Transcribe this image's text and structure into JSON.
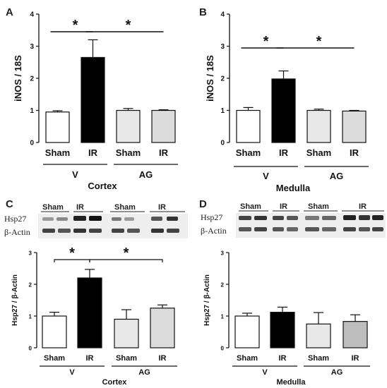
{
  "colors": {
    "sham_v": "#ffffff",
    "ir_v": "#000000",
    "sham_ag": "#e8e8e8",
    "ir_ag_light": "#dcdcdc",
    "ir_ag_dark": "#bdbdbd"
  },
  "blots": [
    {
      "panel": "C",
      "target_label": "Hsp27",
      "loading_label": "β-Actin",
      "lanes": [
        "Sham",
        "IR",
        "Sham",
        "IR"
      ]
    },
    {
      "panel": "D",
      "target_label": "Hsp27",
      "loading_label": "β-Actin",
      "lanes": [
        "Sham",
        "IR",
        "Sham",
        "IR"
      ]
    }
  ],
  "chart_data": [
    {
      "panel": "A",
      "type": "bar",
      "categories": [
        "Sham",
        "IR",
        "Sham",
        "IR"
      ],
      "groups": [
        {
          "label": "V",
          "span": [
            0,
            1
          ]
        },
        {
          "label": "AG",
          "span": [
            2,
            3
          ]
        }
      ],
      "region_label": "Cortex",
      "values": [
        0.95,
        2.65,
        1.0,
        1.0
      ],
      "errors": [
        0.04,
        0.55,
        0.06,
        0.02
      ],
      "ylabel": "iNOS / 18S",
      "ylim": [
        0,
        4
      ],
      "yticks": [
        0,
        1,
        2,
        3,
        4
      ],
      "significance": [
        {
          "from": 0,
          "to": 1,
          "label": "*"
        },
        {
          "from": 1,
          "to": 3,
          "label": "*"
        }
      ]
    },
    {
      "panel": "B",
      "type": "bar",
      "categories": [
        "Sham",
        "IR",
        "Sham",
        "IR"
      ],
      "groups": [
        {
          "label": "V",
          "span": [
            0,
            1
          ]
        },
        {
          "label": "AG",
          "span": [
            2,
            3
          ]
        }
      ],
      "region_label": "Medulla",
      "values": [
        1.0,
        1.98,
        1.0,
        0.98
      ],
      "errors": [
        0.09,
        0.25,
        0.04,
        0.02
      ],
      "ylabel": "iNOS / 18S",
      "ylim": [
        0,
        4
      ],
      "yticks": [
        0,
        1,
        2,
        3,
        4
      ],
      "significance": [
        {
          "from": 0,
          "to": 1,
          "label": "*"
        },
        {
          "from": 1,
          "to": 3,
          "label": "*"
        }
      ]
    },
    {
      "panel": "C",
      "type": "bar",
      "categories": [
        "Sham",
        "IR",
        "Sham",
        "IR"
      ],
      "groups": [
        {
          "label": "V",
          "span": [
            0,
            1
          ]
        },
        {
          "label": "AG",
          "span": [
            2,
            3
          ]
        }
      ],
      "region_label": "Cortex",
      "values": [
        1.0,
        2.2,
        0.9,
        1.25
      ],
      "errors": [
        0.12,
        0.27,
        0.3,
        0.1
      ],
      "ylabel": "Hsp27 / β-Actin",
      "ylim": [
        0,
        3
      ],
      "yticks": [
        0,
        1,
        2,
        3
      ],
      "significance": [
        {
          "from": 0,
          "to": 1,
          "label": "*"
        },
        {
          "from": 1,
          "to": 3,
          "label": "*"
        }
      ]
    },
    {
      "panel": "D",
      "type": "bar",
      "categories": [
        "Sham",
        "IR",
        "Sham",
        "IR"
      ],
      "groups": [
        {
          "label": "V",
          "span": [
            0,
            1
          ]
        },
        {
          "label": "AG",
          "span": [
            2,
            3
          ]
        }
      ],
      "region_label": "Medulla",
      "values": [
        1.0,
        1.12,
        0.75,
        0.83
      ],
      "errors": [
        0.09,
        0.16,
        0.36,
        0.21
      ],
      "ylabel": "Hsp27 / β-Actin",
      "ylim": [
        0,
        3
      ],
      "yticks": [
        0,
        1,
        2,
        3
      ],
      "significance": []
    }
  ]
}
